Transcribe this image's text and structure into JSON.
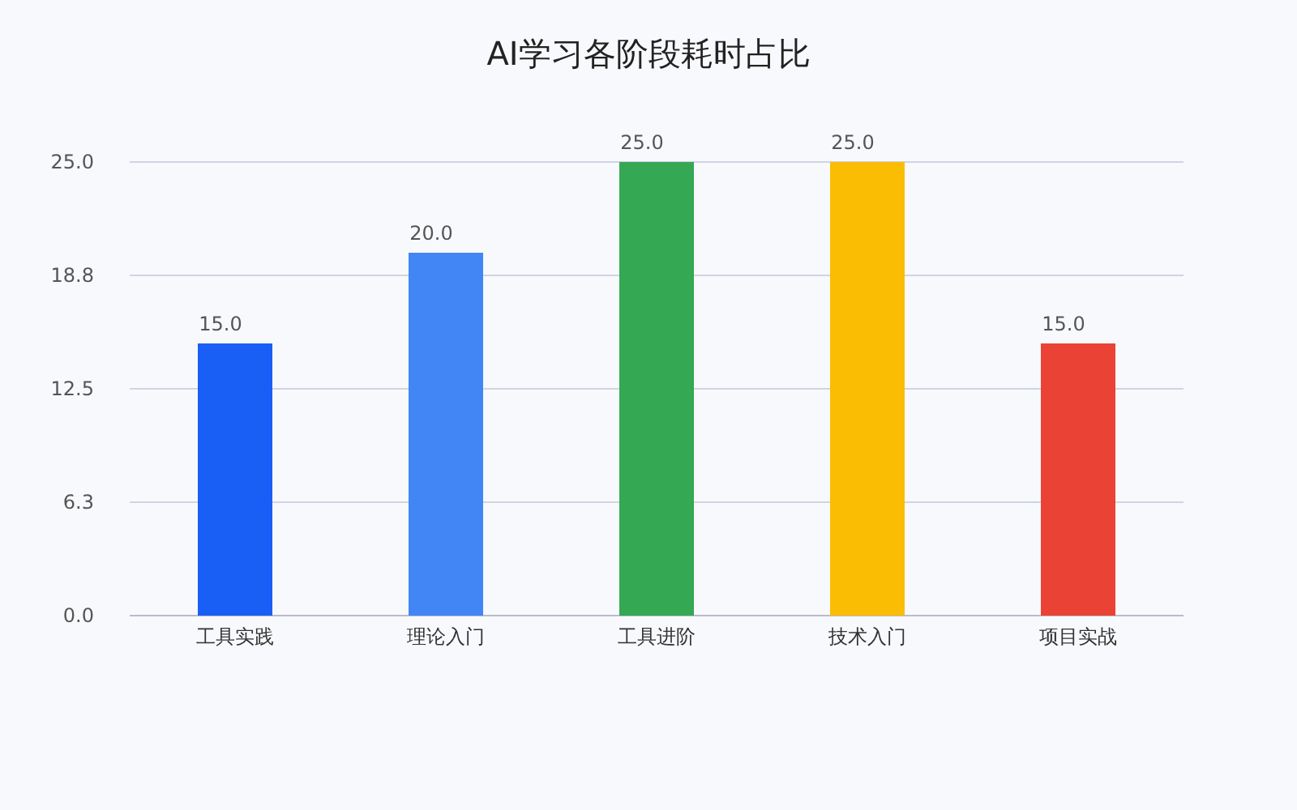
{
  "chart_data": {
    "type": "bar",
    "title": "AI学习各阶段耗时占比",
    "categories": [
      "工具实践",
      "理论入门",
      "工具进阶",
      "技术入门",
      "项目实战"
    ],
    "values": [
      15,
      20,
      25,
      25,
      15
    ],
    "value_labels": [
      "15.0",
      "20.0",
      "25.0",
      "25.0",
      "15.0"
    ],
    "colors": [
      "#1a5ff5",
      "#4286f5",
      "#34a853",
      "#fbbc04",
      "#ea4335"
    ],
    "ylim": [
      0,
      25
    ],
    "yticks": [
      {
        "value": 0,
        "label": "0.0"
      },
      {
        "value": 6.25,
        "label": "6.3"
      },
      {
        "value": 12.5,
        "label": "12.5"
      },
      {
        "value": 18.75,
        "label": "18.8"
      },
      {
        "value": 25,
        "label": "25.0"
      }
    ],
    "grid": "y"
  }
}
